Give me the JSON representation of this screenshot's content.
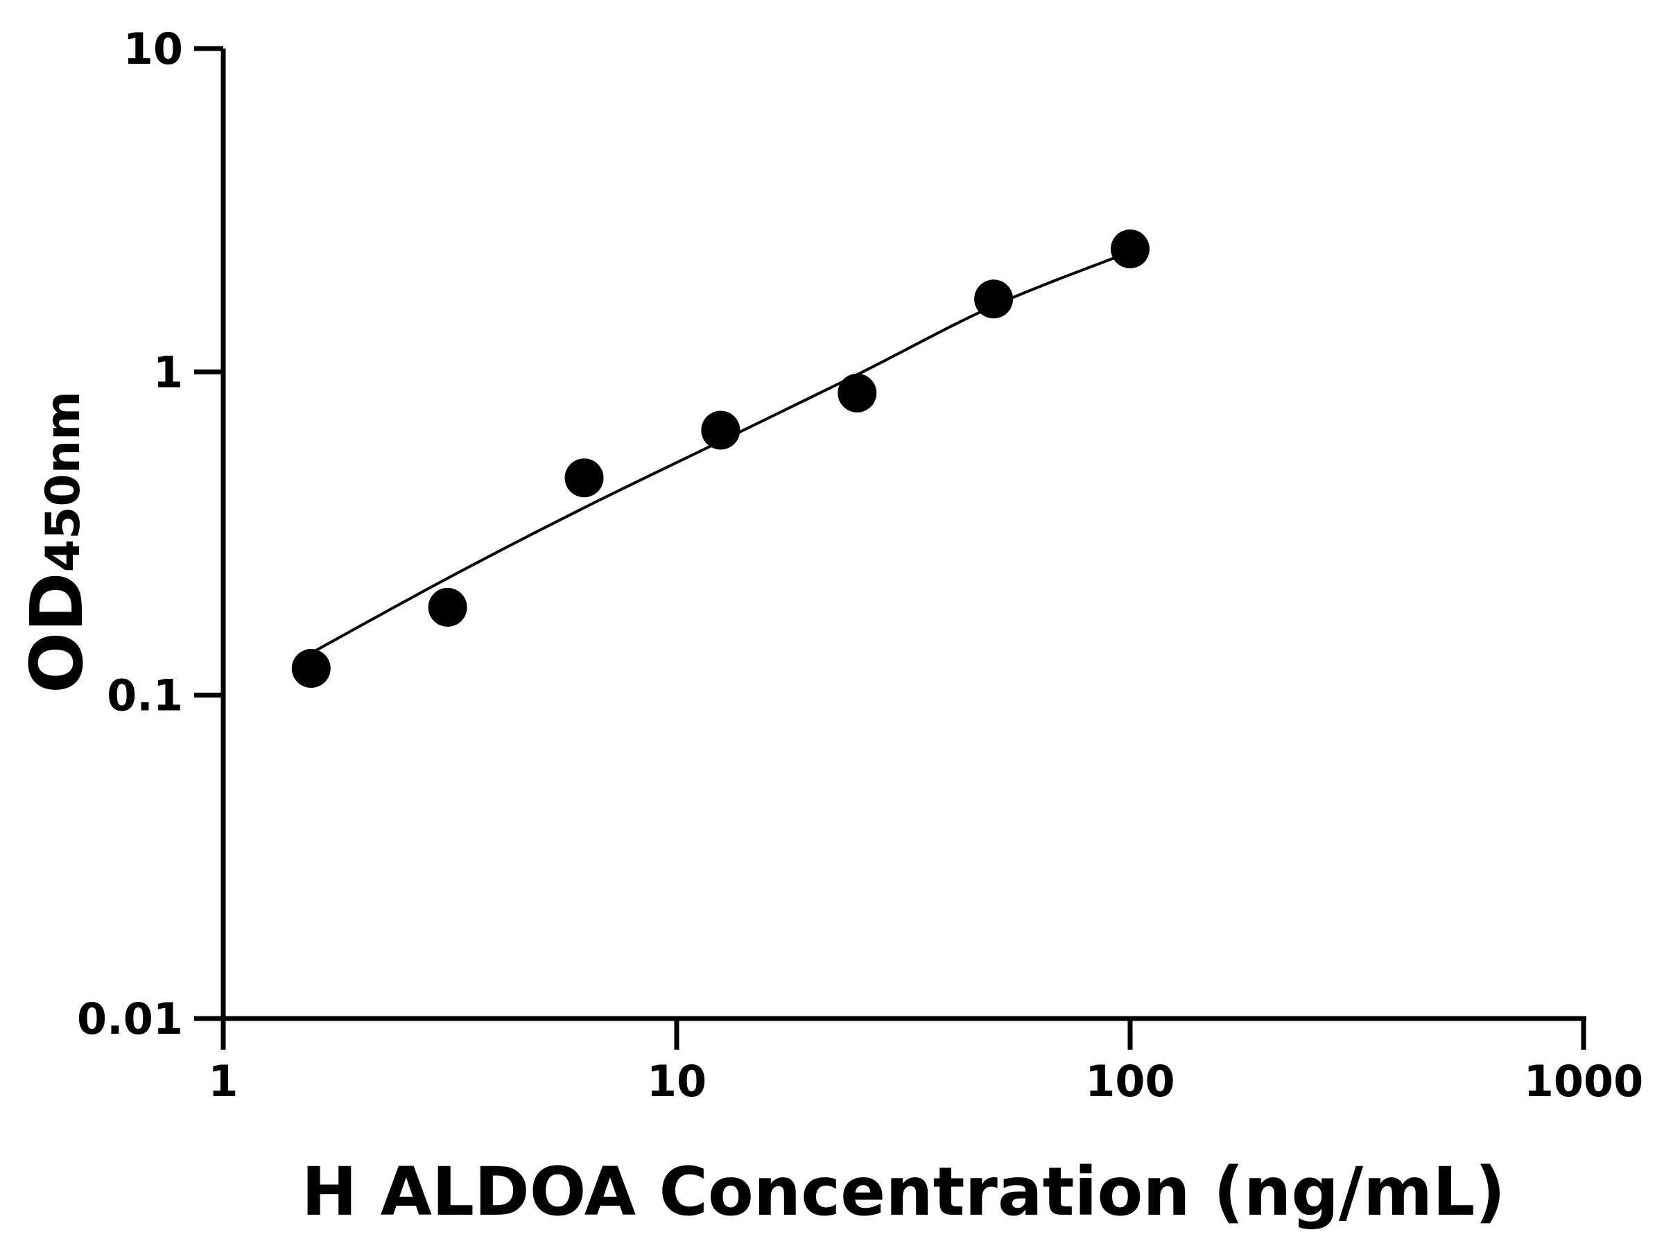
{
  "chart_data": {
    "type": "scatter",
    "title": "",
    "xlabel": "H ALDOA Concentration (ng/mL)",
    "ylabel": "OD",
    "ylabel_subscript": "450nm",
    "x_scale": "log",
    "y_scale": "log",
    "xlim": [
      1,
      1000
    ],
    "ylim": [
      0.01,
      10
    ],
    "x_ticks": [
      "1",
      "10",
      "100",
      "1000"
    ],
    "y_ticks": [
      "0.01",
      "0.1",
      "1",
      "10"
    ],
    "grid": false,
    "colors": {
      "points": "#000000",
      "curve": "#000000",
      "axes": "#000000"
    },
    "points": {
      "x": [
        1.5625,
        3.125,
        6.25,
        12.5,
        25,
        50,
        100
      ],
      "y": [
        0.121,
        0.187,
        0.47,
        0.66,
        0.86,
        1.68,
        2.4
      ]
    },
    "fit_curve": {
      "x": [
        1.5625,
        3.125,
        6.25,
        12.5,
        25,
        50,
        100
      ],
      "y": [
        0.135,
        0.23,
        0.38,
        0.61,
        0.98,
        1.6,
        2.35
      ]
    }
  }
}
